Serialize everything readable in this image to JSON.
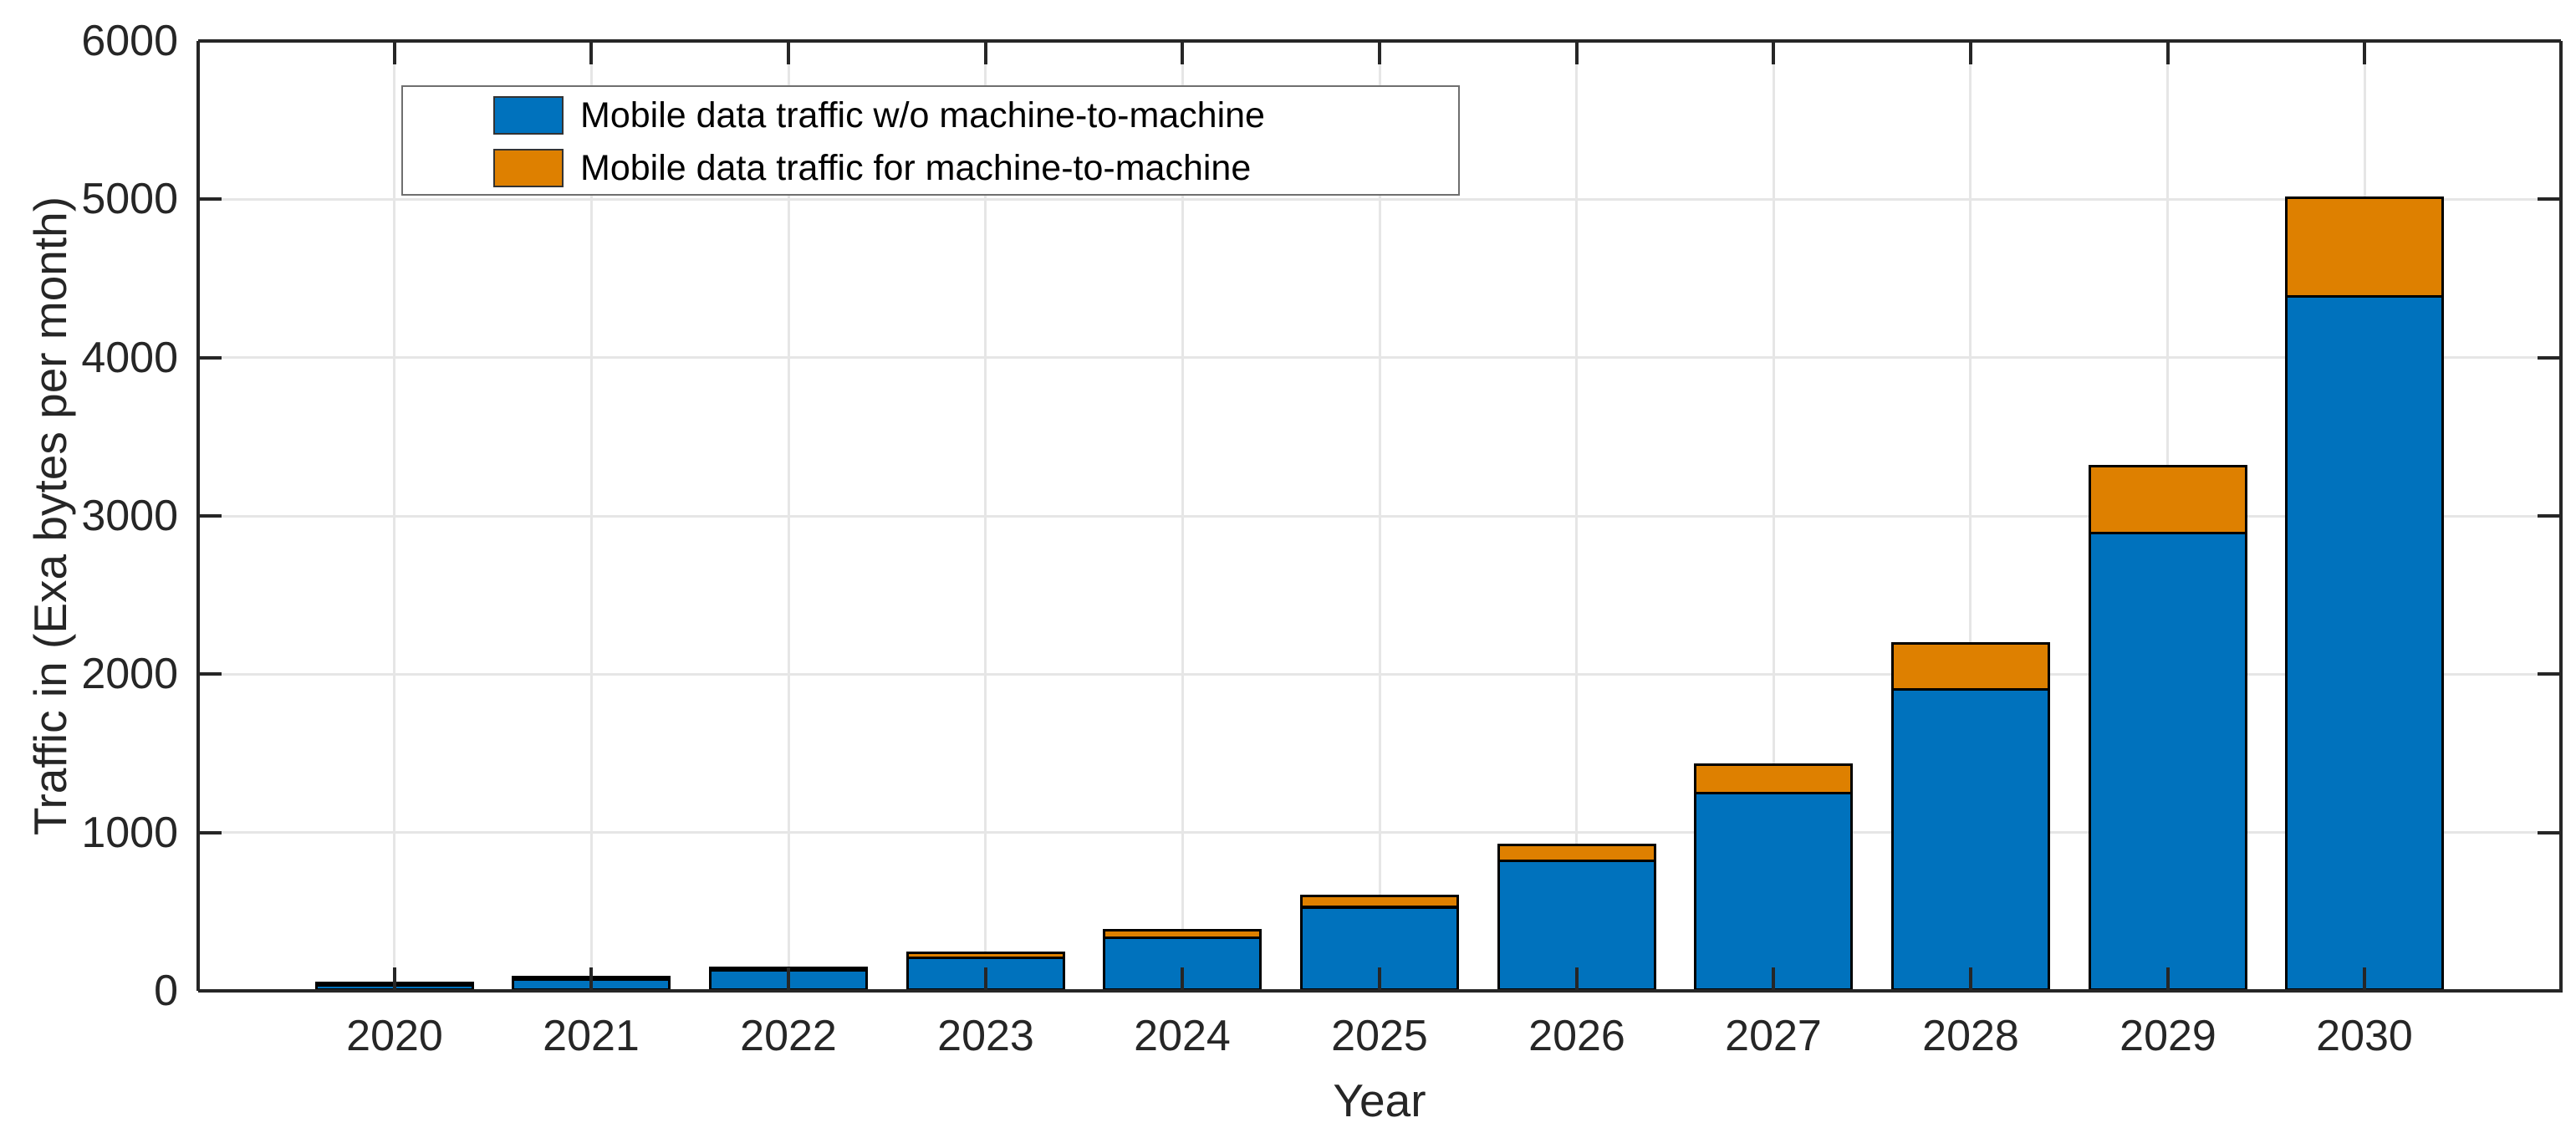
{
  "figure": {
    "background": "#ffffff",
    "axis_color": "#262626",
    "grid_color": "#e6e6e6",
    "bar_edge_color": "#000000"
  },
  "chart_data": {
    "type": "bar",
    "stacked": true,
    "title": "",
    "xlabel": "Year",
    "ylabel": "Traffic in (Exa bytes per month)",
    "categories": [
      "2020",
      "2021",
      "2022",
      "2023",
      "2024",
      "2025",
      "2026",
      "2027",
      "2028",
      "2029",
      "2030"
    ],
    "series": [
      {
        "name": "Mobile data traffic w/o machine-to-machine",
        "color": "#0072BD",
        "values": [
          57,
          90,
          140,
          220,
          345,
          535,
          830,
          1255,
          1910,
          2900,
          4395
        ]
      },
      {
        "name": "Mobile data traffic for machine-to-machine",
        "color": "#DE8000",
        "values": [
          3,
          5,
          12,
          30,
          45,
          70,
          100,
          180,
          290,
          420,
          625
        ]
      }
    ],
    "totals": [
      60,
      95,
      152,
      250,
      390,
      605,
      930,
      1435,
      2200,
      3320,
      5020
    ],
    "ylim": [
      0,
      6000
    ],
    "yticks": [
      0,
      1000,
      2000,
      3000,
      4000,
      5000,
      6000
    ],
    "grid": true,
    "legend_position": "upper-left-inside",
    "legend_entries": [
      "Mobile data traffic w/o machine-to-machine",
      "Mobile data traffic for machine-to-machine"
    ]
  }
}
